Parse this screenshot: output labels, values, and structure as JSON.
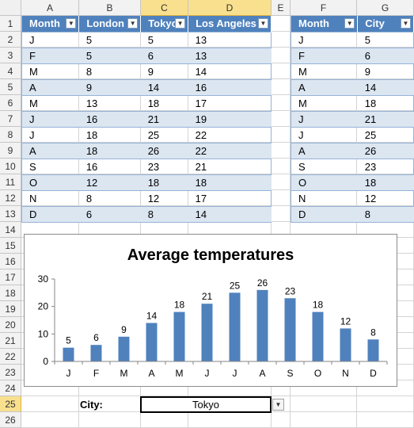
{
  "columns": [
    "A",
    "B",
    "C",
    "D",
    "E",
    "F",
    "G"
  ],
  "rows": [
    "1",
    "2",
    "3",
    "4",
    "5",
    "6",
    "7",
    "8",
    "9",
    "10",
    "11",
    "12",
    "13",
    "14",
    "15",
    "16",
    "17",
    "18",
    "19",
    "20",
    "21",
    "22",
    "23",
    "24",
    "25",
    "26"
  ],
  "table1": {
    "headers": [
      "Month",
      "London",
      "Tokyo",
      "Los Angeles"
    ],
    "rows": [
      [
        "J",
        "5",
        "5",
        "13"
      ],
      [
        "F",
        "5",
        "6",
        "13"
      ],
      [
        "M",
        "8",
        "9",
        "14"
      ],
      [
        "A",
        "9",
        "14",
        "16"
      ],
      [
        "M",
        "13",
        "18",
        "17"
      ],
      [
        "J",
        "16",
        "21",
        "19"
      ],
      [
        "J",
        "18",
        "25",
        "22"
      ],
      [
        "A",
        "18",
        "26",
        "22"
      ],
      [
        "S",
        "16",
        "23",
        "21"
      ],
      [
        "O",
        "12",
        "18",
        "18"
      ],
      [
        "N",
        "8",
        "12",
        "17"
      ],
      [
        "D",
        "6",
        "8",
        "14"
      ]
    ]
  },
  "table2": {
    "headers": [
      "Month",
      "City"
    ],
    "rows": [
      [
        "J",
        "5"
      ],
      [
        "F",
        "6"
      ],
      [
        "M",
        "9"
      ],
      [
        "A",
        "14"
      ],
      [
        "M",
        "18"
      ],
      [
        "J",
        "21"
      ],
      [
        "J",
        "25"
      ],
      [
        "A",
        "26"
      ],
      [
        "S",
        "23"
      ],
      [
        "O",
        "18"
      ],
      [
        "N",
        "12"
      ],
      [
        "D",
        "8"
      ]
    ]
  },
  "city_label": "City:",
  "city_value": "Tokyo",
  "colors": {
    "header_bg": "#4f81bd",
    "band": "#dce6f1",
    "bar": "#4f81bd"
  },
  "chart_data": {
    "type": "bar",
    "title": "Average temperatures",
    "categories": [
      "J",
      "F",
      "M",
      "A",
      "M",
      "J",
      "J",
      "A",
      "S",
      "O",
      "N",
      "D"
    ],
    "values": [
      5,
      6,
      9,
      14,
      18,
      21,
      25,
      26,
      23,
      18,
      12,
      8
    ],
    "ylim": [
      0,
      30
    ],
    "yticks": [
      0,
      10,
      20,
      30
    ],
    "data_labels": true,
    "grid": false,
    "legend": "none"
  }
}
